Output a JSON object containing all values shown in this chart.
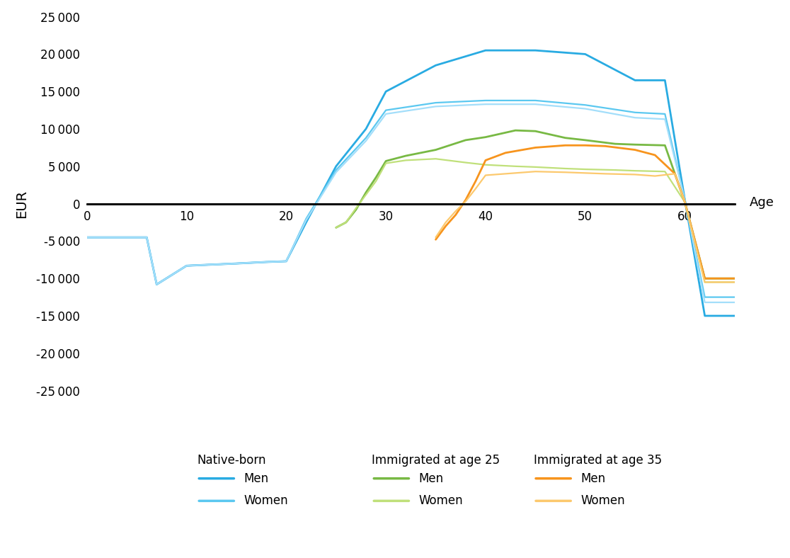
{
  "background_color": "#ffffff",
  "ylabel": "EUR",
  "xlabel": "Age",
  "ylim": [
    -25000,
    25000
  ],
  "xlim": [
    0,
    65
  ],
  "yticks": [
    -25000,
    -20000,
    -15000,
    -10000,
    -5000,
    0,
    5000,
    10000,
    15000,
    20000,
    25000
  ],
  "xticks": [
    0,
    10,
    20,
    30,
    40,
    50,
    60
  ],
  "series": [
    {
      "key": "native_men",
      "color": "#29ABE2",
      "lw": 2.0,
      "ages": [
        0,
        6,
        7,
        10,
        15,
        18,
        20,
        22,
        25,
        28,
        30,
        35,
        40,
        42,
        45,
        50,
        55,
        58,
        60,
        62,
        65
      ],
      "values": [
        -4500,
        -4500,
        -10800,
        -8300,
        -8000,
        -7800,
        -7700,
        -2500,
        5000,
        10000,
        15000,
        18500,
        20500,
        20500,
        20500,
        20000,
        16500,
        16500,
        500,
        -15000,
        -15000
      ]
    },
    {
      "key": "native_women_1",
      "color": "#5BC8F0",
      "lw": 1.6,
      "ages": [
        0,
        6,
        7,
        10,
        15,
        18,
        20,
        22,
        25,
        28,
        30,
        35,
        40,
        42,
        45,
        50,
        55,
        58,
        60,
        62,
        65
      ],
      "values": [
        -4500,
        -4500,
        -10800,
        -8300,
        -8000,
        -7800,
        -7700,
        -2000,
        4500,
        8800,
        12500,
        13500,
        13800,
        13800,
        13800,
        13200,
        12200,
        12000,
        500,
        -12500,
        -12500
      ]
    },
    {
      "key": "native_women_2",
      "color": "#A3DEFA",
      "lw": 1.6,
      "ages": [
        0,
        6,
        7,
        10,
        15,
        18,
        20,
        22,
        25,
        28,
        30,
        35,
        40,
        42,
        45,
        50,
        55,
        58,
        60,
        62,
        65
      ],
      "values": [
        -4500,
        -4500,
        -10800,
        -8300,
        -8000,
        -7800,
        -7700,
        -2200,
        4200,
        8400,
        12000,
        13000,
        13300,
        13300,
        13300,
        12700,
        11500,
        11300,
        500,
        -13200,
        -13200
      ]
    },
    {
      "key": "imm25_men",
      "color": "#78B944",
      "lw": 2.0,
      "ages": [
        25,
        26,
        27,
        28,
        29,
        30,
        32,
        35,
        38,
        40,
        43,
        45,
        48,
        50,
        53,
        55,
        58,
        60,
        62,
        65
      ],
      "values": [
        -3200,
        -2500,
        -800,
        1500,
        3500,
        5700,
        6400,
        7200,
        8500,
        8900,
        9800,
        9700,
        8800,
        8500,
        8000,
        7900,
        7800,
        200,
        -10000,
        -10000
      ]
    },
    {
      "key": "imm25_women",
      "color": "#C0E07A",
      "lw": 1.6,
      "ages": [
        25,
        26,
        27,
        28,
        29,
        30,
        32,
        35,
        38,
        40,
        43,
        45,
        48,
        50,
        53,
        55,
        58,
        60,
        62,
        65
      ],
      "values": [
        -3200,
        -2500,
        -600,
        1200,
        3000,
        5400,
        5800,
        6000,
        5500,
        5200,
        5000,
        4900,
        4700,
        4600,
        4500,
        4400,
        4300,
        200,
        -10500,
        -10500
      ]
    },
    {
      "key": "imm35_men",
      "color": "#F7941D",
      "lw": 2.0,
      "ages": [
        35,
        36,
        37,
        38,
        39,
        40,
        42,
        45,
        48,
        50,
        52,
        55,
        57,
        59,
        60,
        62,
        65
      ],
      "values": [
        -4800,
        -3000,
        -1500,
        500,
        3000,
        5800,
        6800,
        7500,
        7800,
        7800,
        7700,
        7200,
        6500,
        4000,
        200,
        -10000,
        -10000
      ]
    },
    {
      "key": "imm35_women",
      "color": "#FCC96E",
      "lw": 1.6,
      "ages": [
        35,
        36,
        37,
        38,
        39,
        40,
        42,
        45,
        48,
        50,
        52,
        55,
        57,
        59,
        60,
        62,
        65
      ],
      "values": [
        -4500,
        -2500,
        -1000,
        300,
        2000,
        3800,
        4000,
        4300,
        4200,
        4100,
        4000,
        3900,
        3700,
        4000,
        200,
        -10500,
        -10500
      ]
    }
  ],
  "legend_groups": [
    {
      "title": "Native-born",
      "items": [
        {
          "label": "Men",
          "color": "#29ABE2"
        },
        {
          "label": "Women",
          "color": "#5BC8F0"
        }
      ]
    },
    {
      "title": "Immigrated at age 25",
      "items": [
        {
          "label": "Men",
          "color": "#78B944"
        },
        {
          "label": "Women",
          "color": "#C0E07A"
        }
      ]
    },
    {
      "title": "Immigrated at age 35",
      "items": [
        {
          "label": "Men",
          "color": "#F7941D"
        },
        {
          "label": "Women",
          "color": "#FCC96E"
        }
      ]
    }
  ]
}
